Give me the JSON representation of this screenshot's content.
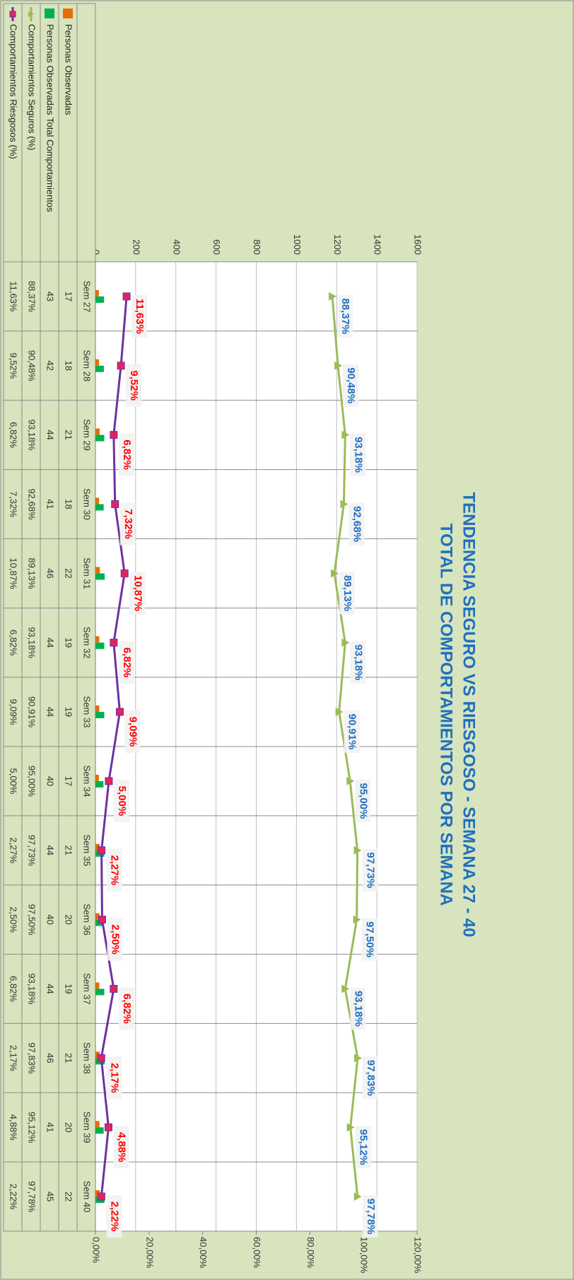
{
  "chart_data": {
    "type": "bar",
    "title": "TENDENCIA SEGURO VS RIESGOSO - SEMANA 27 - 40",
    "subtitle": "TOTAL DE COMPORTAMIENTOS POR SEMANA",
    "categories": [
      "Sem 27",
      "Sem 28",
      "Sem 29",
      "Sem 30",
      "Sem 31",
      "Sem 32",
      "Sem 33",
      "Sem 34",
      "Sem 35",
      "Sem 36",
      "Sem 37",
      "Sem 38",
      "Sem 39",
      "Sem 40"
    ],
    "series": [
      {
        "name": "Personas Observadas",
        "color": "#e46c0a",
        "values": [
          17,
          18,
          21,
          18,
          22,
          19,
          19,
          17,
          21,
          20,
          19,
          21,
          20,
          22
        ]
      },
      {
        "name": "Personas Observadas Total Comportamientos",
        "color": "#00b050",
        "values": [
          43,
          42,
          44,
          41,
          46,
          44,
          44,
          40,
          44,
          40,
          44,
          46,
          41,
          45
        ]
      },
      {
        "name": "Comportamientos Seguros (%)",
        "type": "line",
        "axis": "y2",
        "color": "#9bbb59",
        "label_color": "#1f6fbf",
        "values": [
          88.37,
          90.48,
          93.18,
          92.68,
          89.13,
          93.18,
          90.91,
          95.0,
          97.73,
          97.5,
          93.18,
          97.83,
          95.12,
          97.78
        ],
        "value_labels": [
          "88,37%",
          "90,48%",
          "93,18%",
          "92,68%",
          "89,13%",
          "93,18%",
          "90,91%",
          "95,00%",
          "97,73%",
          "97,50%",
          "93,18%",
          "97,83%",
          "95,12%",
          "97,78%"
        ]
      },
      {
        "name": "Comportamientos Riesgosos (%)",
        "type": "line",
        "axis": "y2",
        "color": "#7030a0",
        "marker_color": "#e0245e",
        "label_color": "#ff0000",
        "values": [
          11.63,
          9.52,
          6.82,
          7.32,
          10.87,
          6.82,
          9.09,
          5.0,
          2.27,
          2.5,
          6.82,
          2.17,
          4.88,
          2.22
        ],
        "value_labels": [
          "11,63%",
          "9,52%",
          "6,82%",
          "7,32%",
          "10,87%",
          "6,82%",
          "9,09%",
          "5,00%",
          "2,27%",
          "2,50%",
          "6,82%",
          "2,17%",
          "4,88%",
          "2,22%"
        ]
      }
    ],
    "ylim": [
      0,
      1600
    ],
    "yticks": [
      0,
      200,
      400,
      600,
      800,
      1000,
      1200,
      1400,
      1600
    ],
    "y2lim": [
      0,
      120
    ],
    "y2ticks": [
      {
        "value": 0,
        "label": "0,00%"
      },
      {
        "value": 20,
        "label": "20,00%"
      },
      {
        "value": 40,
        "label": "40,00%"
      },
      {
        "value": 60,
        "label": "60,00%"
      },
      {
        "value": 80,
        "label": "80,00%"
      },
      {
        "value": 100,
        "label": "100,00%"
      },
      {
        "value": 120,
        "label": "120,00%"
      }
    ],
    "grid": true
  }
}
